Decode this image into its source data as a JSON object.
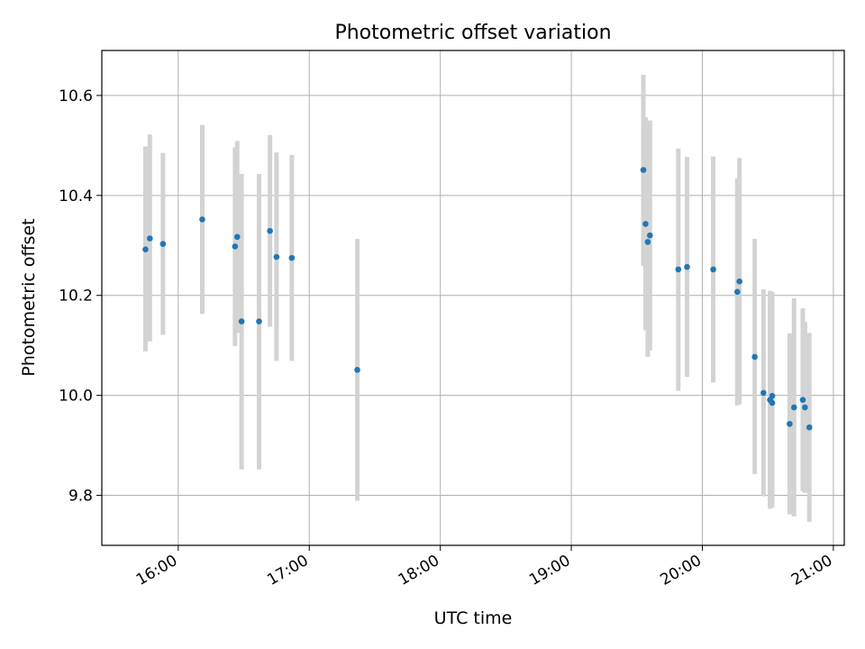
{
  "chart_data": {
    "type": "scatter",
    "title": "Photometric offset variation",
    "xlabel": "UTC time",
    "ylabel": "Photometric offset",
    "xlim": [
      "15:25",
      "21:05"
    ],
    "ylim": [
      9.7,
      10.69
    ],
    "x_ticks": [
      "16:00",
      "17:00",
      "18:00",
      "19:00",
      "20:00",
      "21:00"
    ],
    "y_ticks": [
      9.8,
      10.0,
      10.2,
      10.4,
      10.6
    ],
    "y_tick_labels": [
      "9.8",
      "10.0",
      "10.2",
      "10.4",
      "10.6"
    ],
    "grid": true,
    "point_color": "#1f77b4",
    "errorbar_color": "#d3d3d3",
    "points": [
      {
        "x": "15:45",
        "y": 10.292,
        "ylow": 10.088,
        "yhigh": 10.498
      },
      {
        "x": "15:47",
        "y": 10.314,
        "ylow": 10.108,
        "yhigh": 10.522
      },
      {
        "x": "15:53",
        "y": 10.303,
        "ylow": 10.121,
        "yhigh": 10.485
      },
      {
        "x": "16:11",
        "y": 10.352,
        "ylow": 10.163,
        "yhigh": 10.541
      },
      {
        "x": "16:26",
        "y": 10.298,
        "ylow": 10.099,
        "yhigh": 10.496
      },
      {
        "x": "16:27",
        "y": 10.317,
        "ylow": 10.125,
        "yhigh": 10.509
      },
      {
        "x": "16:29",
        "y": 10.148,
        "ylow": 9.852,
        "yhigh": 10.443
      },
      {
        "x": "16:37",
        "y": 10.148,
        "ylow": 9.852,
        "yhigh": 10.443
      },
      {
        "x": "16:42",
        "y": 10.329,
        "ylow": 10.137,
        "yhigh": 10.521
      },
      {
        "x": "16:45",
        "y": 10.277,
        "ylow": 10.069,
        "yhigh": 10.486
      },
      {
        "x": "16:52",
        "y": 10.275,
        "ylow": 10.069,
        "yhigh": 10.481
      },
      {
        "x": "17:22",
        "y": 10.051,
        "ylow": 9.789,
        "yhigh": 10.313
      },
      {
        "x": "19:33",
        "y": 10.451,
        "ylow": 10.259,
        "yhigh": 10.641
      },
      {
        "x": "19:34",
        "y": 10.343,
        "ylow": 10.13,
        "yhigh": 10.556
      },
      {
        "x": "19:35",
        "y": 10.307,
        "ylow": 10.077,
        "yhigh": 10.537
      },
      {
        "x": "19:36",
        "y": 10.32,
        "ylow": 10.09,
        "yhigh": 10.55
      },
      {
        "x": "19:49",
        "y": 10.252,
        "ylow": 10.009,
        "yhigh": 10.494
      },
      {
        "x": "19:53",
        "y": 10.257,
        "ylow": 10.037,
        "yhigh": 10.477
      },
      {
        "x": "20:05",
        "y": 10.252,
        "ylow": 10.026,
        "yhigh": 10.478
      },
      {
        "x": "20:16",
        "y": 10.207,
        "ylow": 9.98,
        "yhigh": 10.434
      },
      {
        "x": "20:17",
        "y": 10.228,
        "ylow": 9.982,
        "yhigh": 10.475
      },
      {
        "x": "20:24",
        "y": 10.077,
        "ylow": 9.843,
        "yhigh": 10.313
      },
      {
        "x": "20:28",
        "y": 10.005,
        "ylow": 9.798,
        "yhigh": 10.212
      },
      {
        "x": "20:31",
        "y": 9.991,
        "ylow": 9.773,
        "yhigh": 10.209
      },
      {
        "x": "20:32",
        "y": 9.985,
        "ylow": 9.776,
        "yhigh": 10.194
      },
      {
        "x": "20:32",
        "y": 9.999,
        "ylow": 9.791,
        "yhigh": 10.207
      },
      {
        "x": "20:40",
        "y": 9.943,
        "ylow": 9.762,
        "yhigh": 10.124
      },
      {
        "x": "20:42",
        "y": 9.976,
        "ylow": 9.758,
        "yhigh": 10.194
      },
      {
        "x": "20:46",
        "y": 9.991,
        "ylow": 9.808,
        "yhigh": 10.174
      },
      {
        "x": "20:47",
        "y": 9.976,
        "ylow": 9.805,
        "yhigh": 10.147
      },
      {
        "x": "20:49",
        "y": 9.936,
        "ylow": 9.747,
        "yhigh": 10.125
      }
    ]
  }
}
